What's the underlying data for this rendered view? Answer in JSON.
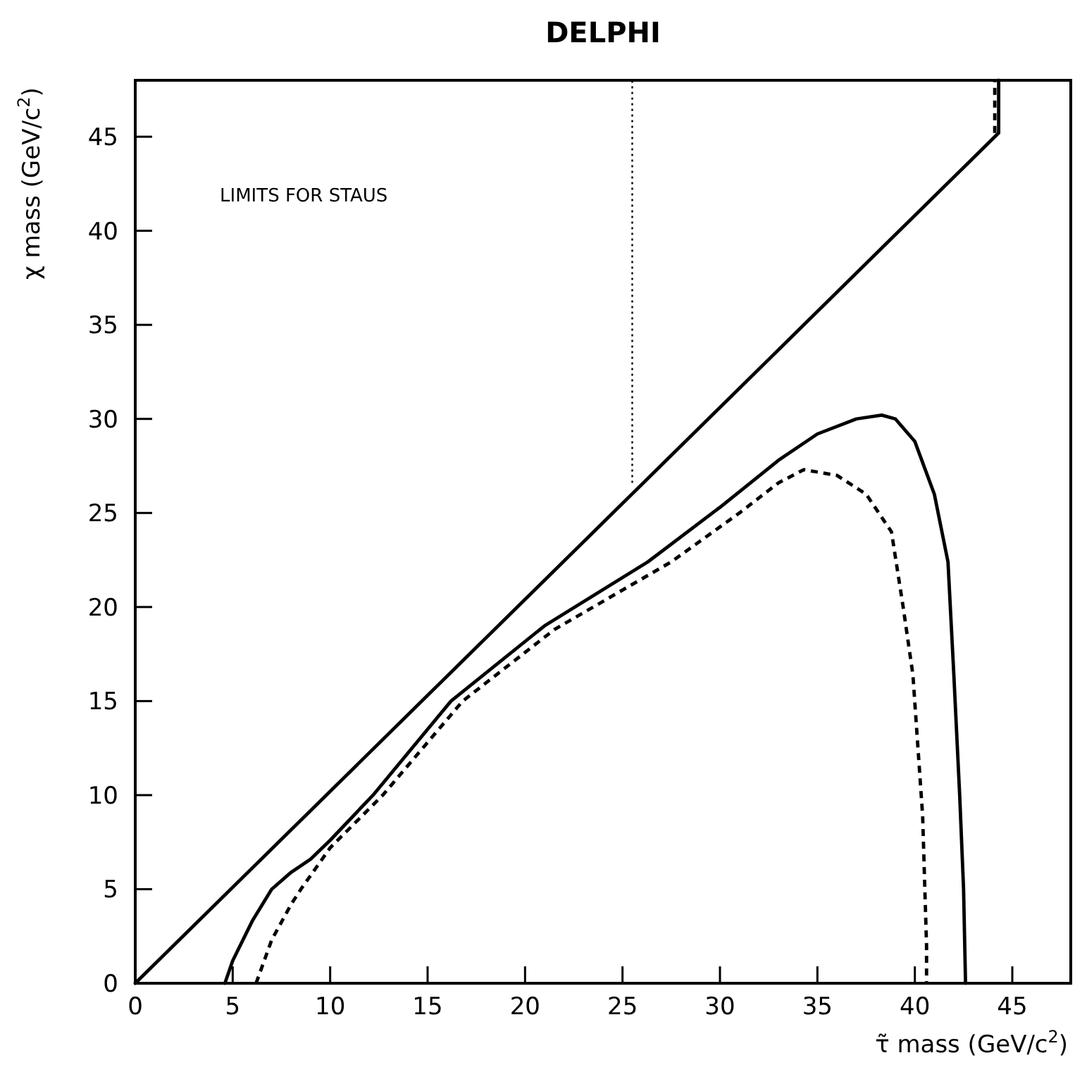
{
  "chart_data": {
    "type": "line",
    "title": "DELPHI",
    "xlabel": "τ̃ mass (GeV/c$^{2}$)",
    "ylabel": "χ mass (GeV/c$^{2}$)",
    "annotations": [
      "LIMITS FOR STAUS"
    ],
    "xlim": [
      0,
      48
    ],
    "ylim": [
      0,
      48
    ],
    "xticks": [
      0,
      5,
      10,
      15,
      20,
      25,
      30,
      35,
      40,
      45
    ],
    "yticks": [
      0,
      5,
      10,
      15,
      20,
      25,
      30,
      35,
      40,
      45
    ],
    "grid": false,
    "series": [
      {
        "color": "#000000",
        "line_style": "solid",
        "x": [
          0,
          44.3,
          44.3
        ],
        "values": [
          0,
          45.2,
          48
        ]
      },
      {
        "color": "#000000",
        "line_style": "dashed",
        "x": [
          44.1,
          44.1
        ],
        "values": [
          45.2,
          48
        ]
      },
      {
        "color": "#000000",
        "line_style": "dotted",
        "x": [
          25.5,
          25.5
        ],
        "values": [
          26.6,
          48
        ]
      },
      {
        "color": "#000000",
        "line_style": "solid",
        "x": [
          4.6,
          5,
          6,
          7,
          8,
          9,
          10,
          12.2,
          16.2,
          21,
          26.3,
          30,
          33,
          35,
          37,
          38.3,
          39,
          40,
          41,
          41.7,
          42,
          42.3,
          42.5,
          42.6
        ],
        "values": [
          0,
          1.2,
          3.3,
          5,
          5.9,
          6.6,
          7.6,
          10,
          15,
          19,
          22.4,
          25.3,
          27.8,
          29.2,
          30,
          30.2,
          30,
          28.8,
          26,
          22.4,
          16.4,
          10,
          5,
          0
        ]
      },
      {
        "color": "#000000",
        "line_style": "dashed",
        "x": [
          6.2,
          7,
          8,
          8.5,
          10,
          12.7,
          16.8,
          21.5,
          27.5,
          31,
          33,
          34.3,
          36,
          37.5,
          38.8,
          39.4,
          39.9,
          40.4,
          40.6,
          40.6
        ],
        "values": [
          0,
          2.3,
          4.2,
          5,
          7.2,
          10,
          15,
          18.8,
          22.4,
          25,
          26.6,
          27.3,
          27,
          26,
          24,
          20,
          16.4,
          8.9,
          2,
          0
        ]
      }
    ]
  }
}
